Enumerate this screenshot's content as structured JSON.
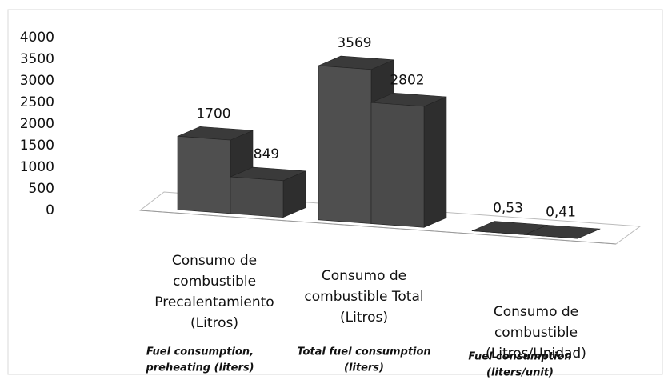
{
  "chart_data": {
    "type": "bar3d",
    "categories": [
      [
        "Consumo de",
        "combustible",
        "Precalentamiento",
        "(Litros)"
      ],
      [
        "Consumo de",
        "combustible Total",
        "(Litros)"
      ],
      [
        "Consumo de",
        "combustible",
        "(Litros/Unidad)"
      ]
    ],
    "category_translations": [
      [
        "Fuel consumption,",
        "preheating (liters)"
      ],
      [
        "Total fuel consumption",
        "(liters)"
      ],
      [
        "Fuel consumption",
        "(liters/unit)"
      ]
    ],
    "series": [
      {
        "color": "#4f4f4f",
        "values": [
          1700,
          3569,
          0.53
        ],
        "value_labels": [
          "1700",
          "3569",
          "0,53"
        ]
      },
      {
        "color": "#4a4a4a",
        "values": [
          849,
          2802,
          0.41
        ],
        "value_labels": [
          "849",
          "2802",
          "0,41"
        ]
      }
    ],
    "ylim": [
      0,
      4000
    ],
    "yticks": [
      0,
      500,
      1000,
      1500,
      2000,
      2500,
      3000,
      3500,
      4000
    ]
  }
}
